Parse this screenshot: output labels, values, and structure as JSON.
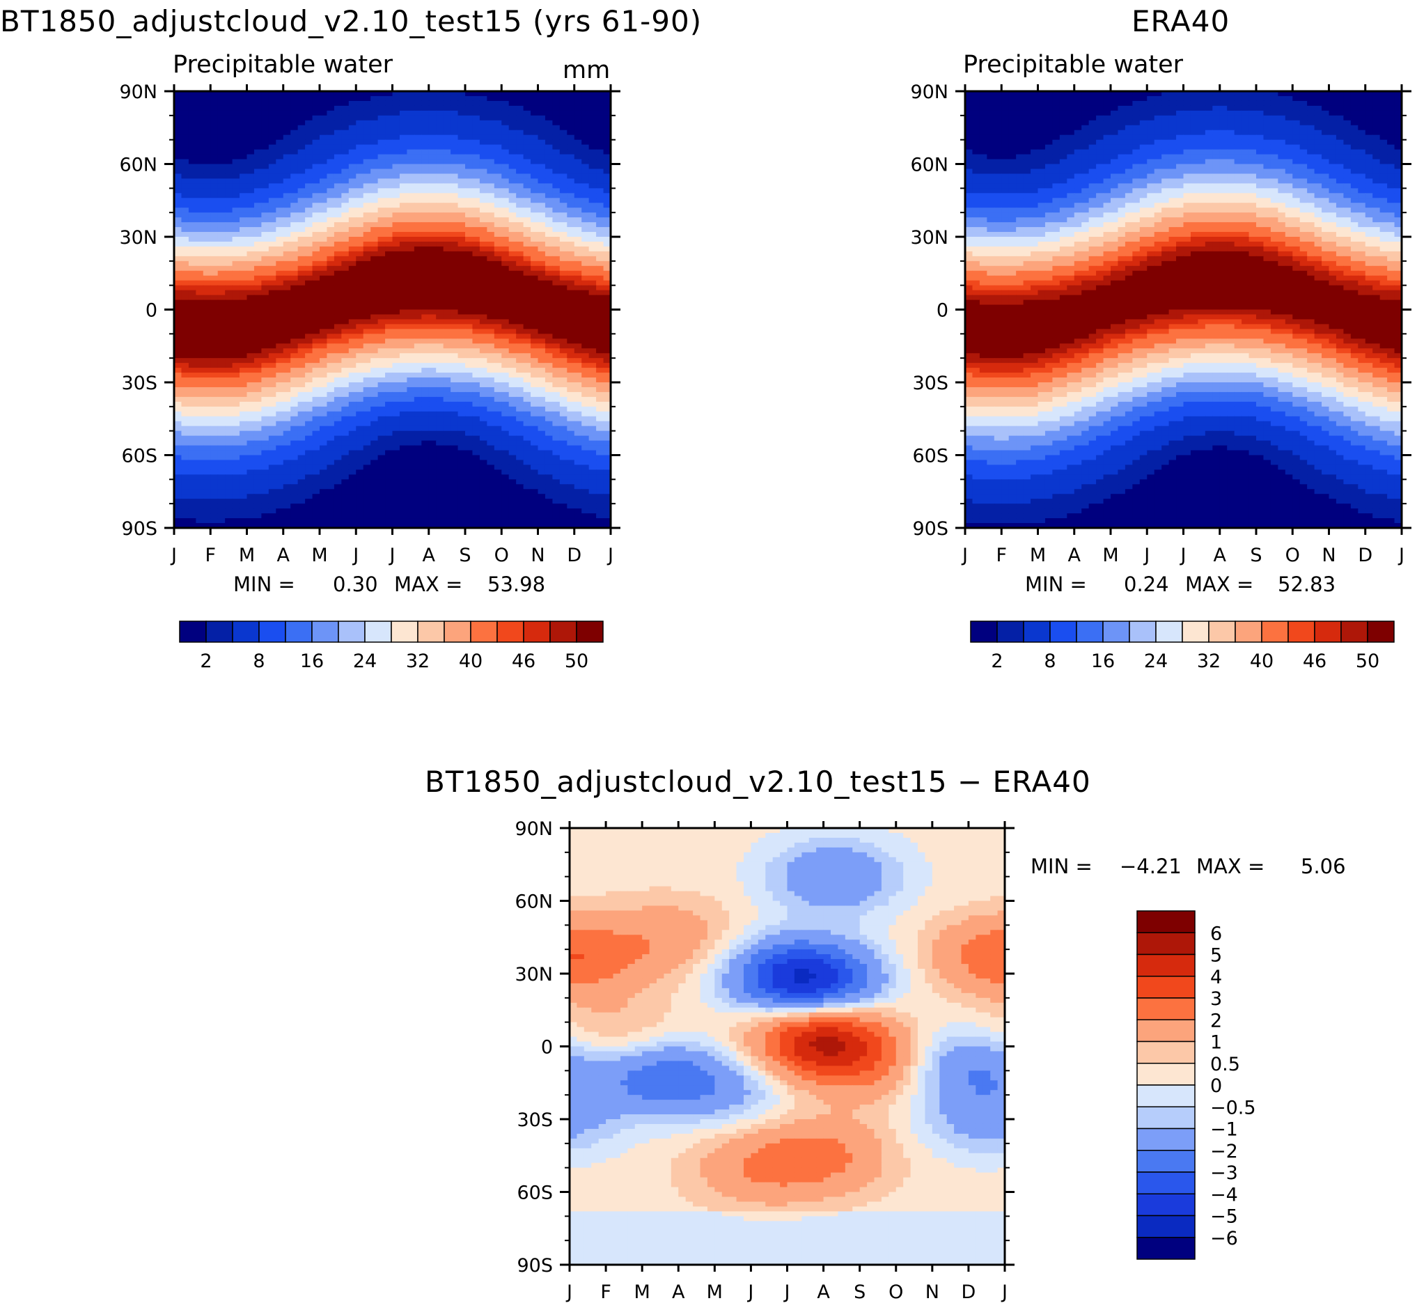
{
  "colors": {
    "pw_palette": [
      "#00007f",
      "#0420a6",
      "#0a37cf",
      "#1a4ef0",
      "#3b6ff4",
      "#6d94f7",
      "#a9c1fa",
      "#d7e6fc",
      "#fde6d2",
      "#fcc8a8",
      "#fca47c",
      "#fc7240",
      "#f1481c",
      "#d62a0d",
      "#ae1708",
      "#7e0000"
    ],
    "diff_palette": [
      "#00007f",
      "#0a2ac1",
      "#1a3bdc",
      "#2a57ec",
      "#4a79f2",
      "#7c9ef8",
      "#b6cdfb",
      "#d7e6fc",
      "#fde6d2",
      "#fcc8a8",
      "#fca47c",
      "#fc7240",
      "#f1481c",
      "#d62a0d",
      "#ae1708",
      "#7e0000"
    ]
  },
  "chart_data": [
    {
      "type": "heatmap",
      "title": "BT1850_adjustcloud_v2.10_test15 (yrs 61-90)",
      "subtitle": "Precipitable water",
      "units": "mm",
      "x_tick_labels": [
        "J",
        "F",
        "M",
        "A",
        "M",
        "J",
        "J",
        "A",
        "S",
        "O",
        "N",
        "D",
        "J"
      ],
      "y_tick_labels": [
        "90N",
        "60N",
        "30N",
        "0",
        "30S",
        "60S",
        "90S"
      ],
      "ylim": [
        -90,
        90
      ],
      "min_label": "MIN =",
      "min_value": "0.30",
      "max_label": "MAX =",
      "max_value": "53.98",
      "levels": [
        2,
        4,
        8,
        12,
        16,
        20,
        24,
        28,
        32,
        36,
        40,
        44,
        46,
        48,
        50
      ],
      "colorbar_labels": [
        "2",
        "8",
        "16",
        "24",
        "32",
        "40",
        "46",
        "50"
      ],
      "model": {
        "eq_peak": 53.98,
        "pole_min": 0.3,
        "peak_lat_shift": 9,
        "width": 24
      }
    },
    {
      "type": "heatmap",
      "title": "ERA40",
      "subtitle": "Precipitable water",
      "x_tick_labels": [
        "J",
        "F",
        "M",
        "A",
        "M",
        "J",
        "J",
        "A",
        "S",
        "O",
        "N",
        "D",
        "J"
      ],
      "y_tick_labels": [
        "90N",
        "60N",
        "30N",
        "0",
        "30S",
        "60S",
        "90S"
      ],
      "ylim": [
        -90,
        90
      ],
      "min_label": "MIN =",
      "min_value": "0.24",
      "max_label": "MAX =",
      "max_value": "52.83",
      "levels": [
        2,
        4,
        8,
        12,
        16,
        20,
        24,
        28,
        32,
        36,
        40,
        44,
        46,
        48,
        50
      ],
      "colorbar_labels": [
        "2",
        "8",
        "16",
        "24",
        "32",
        "40",
        "46",
        "50"
      ],
      "model": {
        "eq_peak": 52.83,
        "pole_min": 0.24,
        "peak_lat_shift": 9,
        "width": 25
      }
    },
    {
      "type": "heatmap",
      "title": "BT1850_adjustcloud_v2.10_test15 − ERA40",
      "x_tick_labels": [
        "J",
        "F",
        "M",
        "A",
        "M",
        "J",
        "J",
        "A",
        "S",
        "O",
        "N",
        "D",
        "J"
      ],
      "y_tick_labels": [
        "90N",
        "60N",
        "30N",
        "0",
        "30S",
        "60S",
        "90S"
      ],
      "ylim": [
        -90,
        90
      ],
      "min_label": "MIN =",
      "min_value": "−4.21",
      "max_label": "MAX =",
      "max_value": "5.06",
      "levels": [
        -6,
        -5,
        -4,
        -3,
        -2,
        -1,
        -0.5,
        0,
        0.5,
        1,
        2,
        3,
        4,
        5,
        6
      ],
      "colorbar_labels": [
        "6",
        "5",
        "4",
        "3",
        "2",
        "1",
        "0.5",
        "0",
        "−0.5",
        "−1",
        "−2",
        "−3",
        "−4",
        "−5",
        "−6"
      ],
      "features": [
        {
          "month": 2.8,
          "lat": 45,
          "value": 1.3
        },
        {
          "month": 0.5,
          "lat": 35,
          "value": 1.2
        },
        {
          "month": 11.7,
          "lat": 38,
          "value": 1.6
        },
        {
          "month": 6.8,
          "lat": 26,
          "value": -3.6
        },
        {
          "month": 6.0,
          "lat": 30,
          "value": -2.5
        },
        {
          "month": 7.3,
          "lat": 70,
          "value": -2.2
        },
        {
          "month": 6.9,
          "lat": 3,
          "value": 4.8
        },
        {
          "month": 8.3,
          "lat": -8,
          "value": 1.6
        },
        {
          "month": 2.5,
          "lat": -12,
          "value": -2.8
        },
        {
          "month": 4.5,
          "lat": -18,
          "value": -1.2
        },
        {
          "month": 11.0,
          "lat": -8,
          "value": -2.2
        },
        {
          "month": 11.5,
          "lat": -30,
          "value": -1.6
        },
        {
          "month": 7.0,
          "lat": -45,
          "value": 1.8
        },
        {
          "month": 5.2,
          "lat": -50,
          "value": 1.5
        },
        {
          "month": 1.3,
          "lat": 3,
          "value": 1.1
        }
      ]
    }
  ]
}
